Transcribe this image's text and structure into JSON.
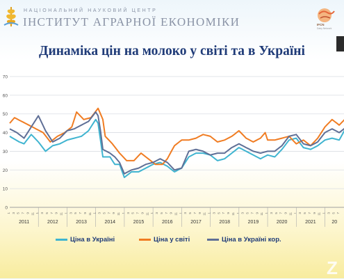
{
  "header": {
    "org_line1": "НАЦІОНАЛЬНИЙ НАУКОВИЙ ЦЕНТР",
    "org_line2": "ІНСТИТУТ АГРАРНОЇ ЕКОНОМІКИ",
    "partner_logo": "IFCN",
    "partner_sub": "Dairy Network"
  },
  "slide": {
    "title": "Динаміка цін на молоко у світі та в Україні"
  },
  "watermark": "Z",
  "chart_data": {
    "type": "line",
    "title": "Динаміка цін на молоко у світі та в Україні",
    "ylim": [
      0,
      70
    ],
    "y_ticks": [
      "0",
      "10",
      "20",
      "30",
      "40",
      "50",
      "60",
      "70"
    ],
    "year_labels": [
      "2011",
      "2012",
      "2013",
      "2014",
      "2015",
      "2016",
      "2017",
      "2018",
      "2019",
      "2020",
      "2021",
      "20"
    ],
    "month_tick_labels": [
      "1",
      "3",
      "5",
      "7",
      "9",
      "11"
    ],
    "grid": true,
    "legend_position": "bottom",
    "colors": {
      "ukraine": "#3fb4d0",
      "world": "#f07c22",
      "ukraine_cor": "#5f6f96"
    },
    "series": [
      {
        "name": "Ціна в Україні",
        "anchors": [
          [
            0,
            38
          ],
          [
            4,
            35
          ],
          [
            6,
            34
          ],
          [
            9,
            39
          ],
          [
            12,
            35
          ],
          [
            15,
            30
          ],
          [
            18,
            33
          ],
          [
            21,
            34
          ],
          [
            24,
            36
          ],
          [
            27,
            37
          ],
          [
            30,
            38
          ],
          [
            33,
            41
          ],
          [
            36,
            47
          ],
          [
            37,
            45
          ],
          [
            38,
            36
          ],
          [
            39,
            27
          ],
          [
            42,
            27
          ],
          [
            44,
            23
          ],
          [
            46,
            23
          ],
          [
            48,
            16
          ],
          [
            51,
            19
          ],
          [
            54,
            19
          ],
          [
            57,
            21
          ],
          [
            60,
            23
          ],
          [
            63,
            24
          ],
          [
            66,
            22
          ],
          [
            69,
            19
          ],
          [
            72,
            21
          ],
          [
            75,
            27
          ],
          [
            78,
            29
          ],
          [
            81,
            29
          ],
          [
            84,
            28
          ],
          [
            87,
            25
          ],
          [
            90,
            26
          ],
          [
            93,
            29
          ],
          [
            96,
            32
          ],
          [
            99,
            30
          ],
          [
            102,
            28
          ],
          [
            105,
            26
          ],
          [
            108,
            28
          ],
          [
            111,
            27
          ],
          [
            114,
            31
          ],
          [
            117,
            36
          ],
          [
            120,
            37
          ],
          [
            123,
            32
          ],
          [
            126,
            31
          ],
          [
            129,
            33
          ],
          [
            132,
            36
          ],
          [
            135,
            37
          ],
          [
            138,
            36
          ],
          [
            141,
            43
          ],
          [
            144,
            41
          ],
          [
            145,
            38
          ]
        ]
      },
      {
        "name": "Ціна у світі",
        "anchors": [
          [
            0,
            45
          ],
          [
            2,
            48
          ],
          [
            5,
            46
          ],
          [
            8,
            44
          ],
          [
            11,
            42
          ],
          [
            14,
            40
          ],
          [
            17,
            35
          ],
          [
            20,
            38
          ],
          [
            23,
            40
          ],
          [
            26,
            43
          ],
          [
            28,
            51
          ],
          [
            31,
            47
          ],
          [
            34,
            48
          ],
          [
            37,
            53
          ],
          [
            39,
            47
          ],
          [
            40,
            38
          ],
          [
            43,
            34
          ],
          [
            46,
            29
          ],
          [
            49,
            25
          ],
          [
            52,
            25
          ],
          [
            55,
            29
          ],
          [
            58,
            26
          ],
          [
            61,
            23
          ],
          [
            64,
            23
          ],
          [
            66,
            26
          ],
          [
            69,
            33
          ],
          [
            72,
            36
          ],
          [
            75,
            36
          ],
          [
            78,
            37
          ],
          [
            81,
            39
          ],
          [
            84,
            38
          ],
          [
            87,
            35
          ],
          [
            90,
            36
          ],
          [
            93,
            38
          ],
          [
            96,
            41
          ],
          [
            99,
            37
          ],
          [
            102,
            35
          ],
          [
            105,
            37
          ],
          [
            107,
            40
          ],
          [
            108,
            36
          ],
          [
            111,
            36
          ],
          [
            114,
            37
          ],
          [
            117,
            38
          ],
          [
            120,
            34
          ],
          [
            123,
            36
          ],
          [
            126,
            33
          ],
          [
            129,
            37
          ],
          [
            132,
            43
          ],
          [
            135,
            47
          ],
          [
            138,
            44
          ],
          [
            141,
            48
          ],
          [
            143,
            55
          ],
          [
            145,
            52
          ]
        ]
      },
      {
        "name": "Ціна в Україні кор.",
        "anchors": [
          [
            0,
            42
          ],
          [
            3,
            40
          ],
          [
            6,
            37
          ],
          [
            9,
            43
          ],
          [
            12,
            49
          ],
          [
            15,
            41
          ],
          [
            18,
            35
          ],
          [
            21,
            37
          ],
          [
            24,
            41
          ],
          [
            27,
            42
          ],
          [
            30,
            44
          ],
          [
            33,
            46
          ],
          [
            36,
            51
          ],
          [
            37,
            49
          ],
          [
            38,
            41
          ],
          [
            39,
            31
          ],
          [
            42,
            29
          ],
          [
            44,
            27
          ],
          [
            46,
            24
          ],
          [
            48,
            18
          ],
          [
            51,
            20
          ],
          [
            54,
            21
          ],
          [
            57,
            23
          ],
          [
            60,
            24
          ],
          [
            63,
            26
          ],
          [
            66,
            24
          ],
          [
            69,
            20
          ],
          [
            72,
            21
          ],
          [
            75,
            30
          ],
          [
            78,
            31
          ],
          [
            81,
            30
          ],
          [
            84,
            28
          ],
          [
            87,
            29
          ],
          [
            90,
            29
          ],
          [
            93,
            32
          ],
          [
            96,
            34
          ],
          [
            99,
            32
          ],
          [
            102,
            30
          ],
          [
            105,
            29
          ],
          [
            108,
            30
          ],
          [
            111,
            30
          ],
          [
            114,
            33
          ],
          [
            117,
            38
          ],
          [
            120,
            39
          ],
          [
            123,
            34
          ],
          [
            126,
            33
          ],
          [
            129,
            35
          ],
          [
            132,
            40
          ],
          [
            135,
            42
          ],
          [
            138,
            40
          ],
          [
            141,
            43
          ],
          [
            144,
            42
          ],
          [
            145,
            40
          ]
        ]
      }
    ]
  }
}
